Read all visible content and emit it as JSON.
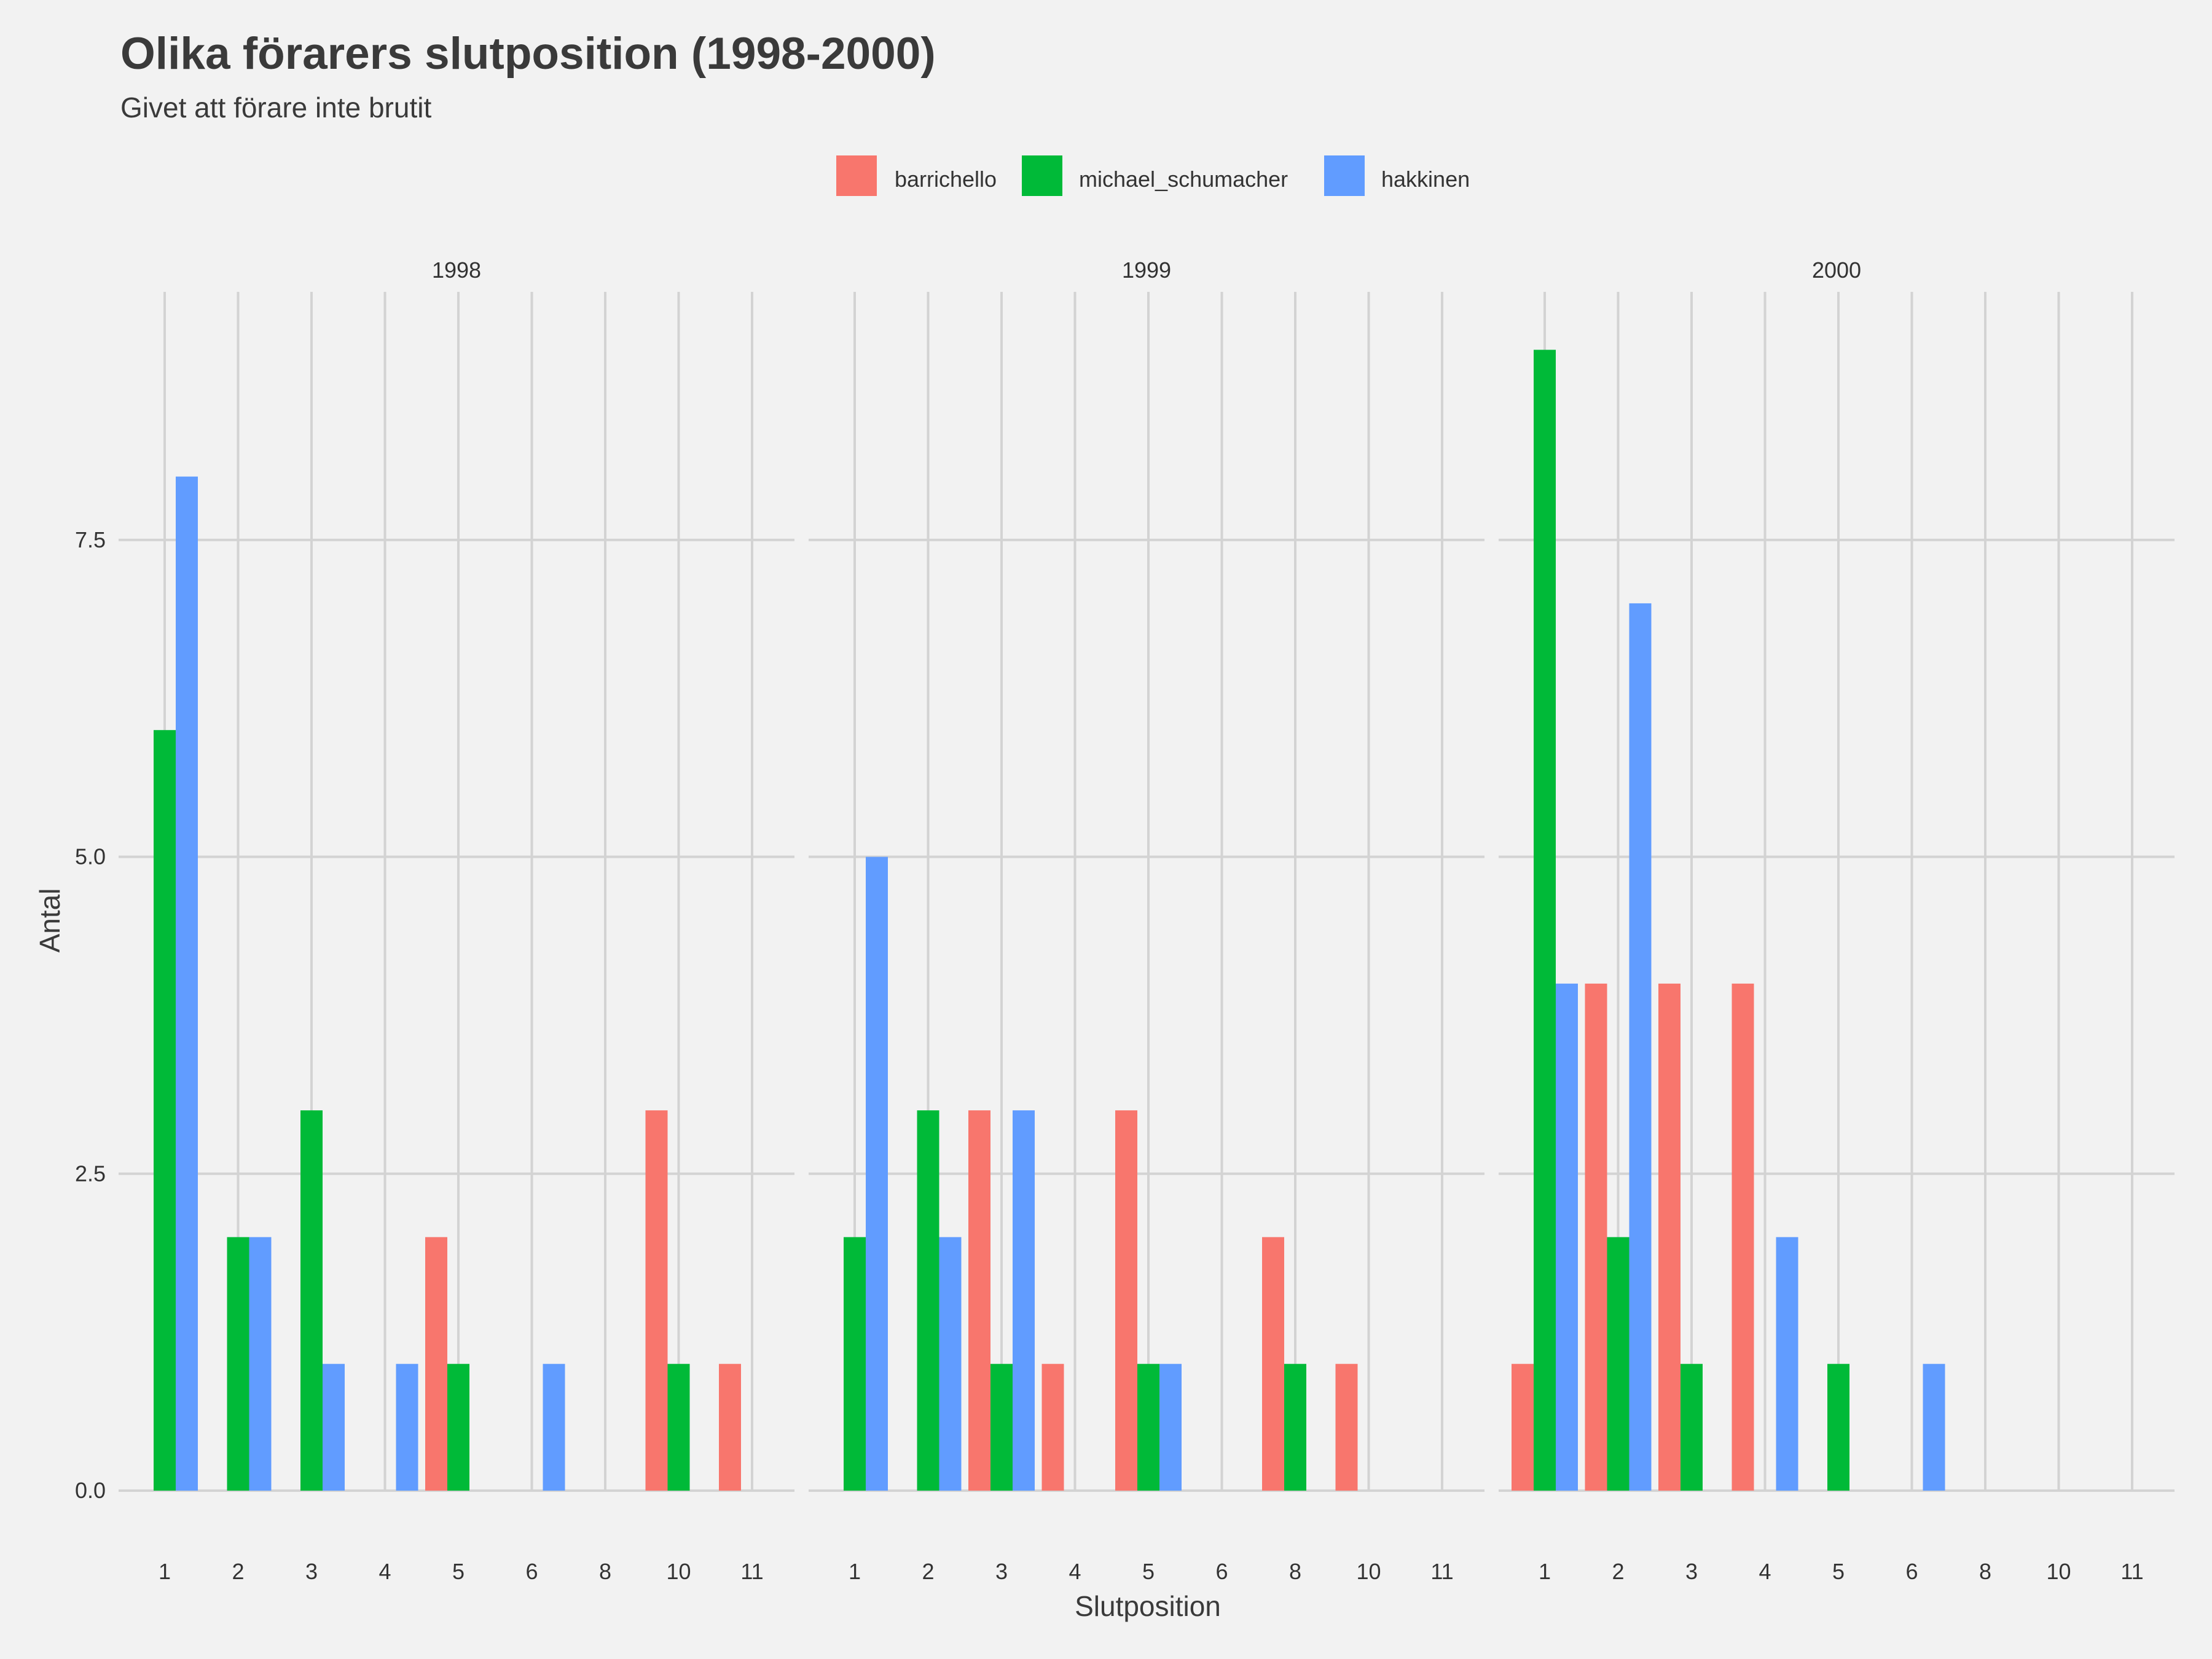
{
  "chart_data": {
    "type": "bar",
    "title": "Olika förarers slutposition (1998-2000)",
    "subtitle": "Givet att förare inte brutit",
    "xlabel": "Slutposition",
    "ylabel": "Antal",
    "categories": [
      "1",
      "2",
      "3",
      "4",
      "5",
      "6",
      "8",
      "10",
      "11"
    ],
    "ylim": [
      0,
      9.4
    ],
    "yticks": [
      0,
      2.5,
      5,
      7.5
    ],
    "ytick_labels": [
      "0.0",
      "2.5",
      "5.0",
      "7.5"
    ],
    "grid": true,
    "legend_position": "top",
    "series": [
      {
        "name": "barrichello",
        "color": "#F8766D"
      },
      {
        "name": "michael_schumacher",
        "color": "#00BA38"
      },
      {
        "name": "hakkinen",
        "color": "#619CFF"
      }
    ],
    "facets": [
      {
        "label": "1998",
        "values": {
          "barrichello": [
            0,
            0,
            0,
            0,
            2,
            0,
            0,
            3,
            1
          ],
          "michael_schumacher": [
            6,
            2,
            3,
            0,
            1,
            0,
            0,
            1,
            0
          ],
          "hakkinen": [
            8,
            2,
            1,
            1,
            0,
            1,
            0,
            0,
            0
          ]
        }
      },
      {
        "label": "1999",
        "values": {
          "barrichello": [
            0,
            0,
            3,
            1,
            3,
            0,
            2,
            1,
            0
          ],
          "michael_schumacher": [
            2,
            3,
            1,
            0,
            1,
            0,
            1,
            0,
            0
          ],
          "hakkinen": [
            5,
            2,
            3,
            0,
            1,
            0,
            0,
            0,
            0
          ]
        }
      },
      {
        "label": "2000",
        "values": {
          "barrichello": [
            1,
            4,
            4,
            4,
            0,
            0,
            0,
            0,
            0
          ],
          "michael_schumacher": [
            9,
            2,
            1,
            0,
            1,
            0,
            0,
            0,
            0
          ],
          "hakkinen": [
            4,
            7,
            0,
            2,
            0,
            1,
            0,
            0,
            0
          ]
        }
      }
    ]
  }
}
